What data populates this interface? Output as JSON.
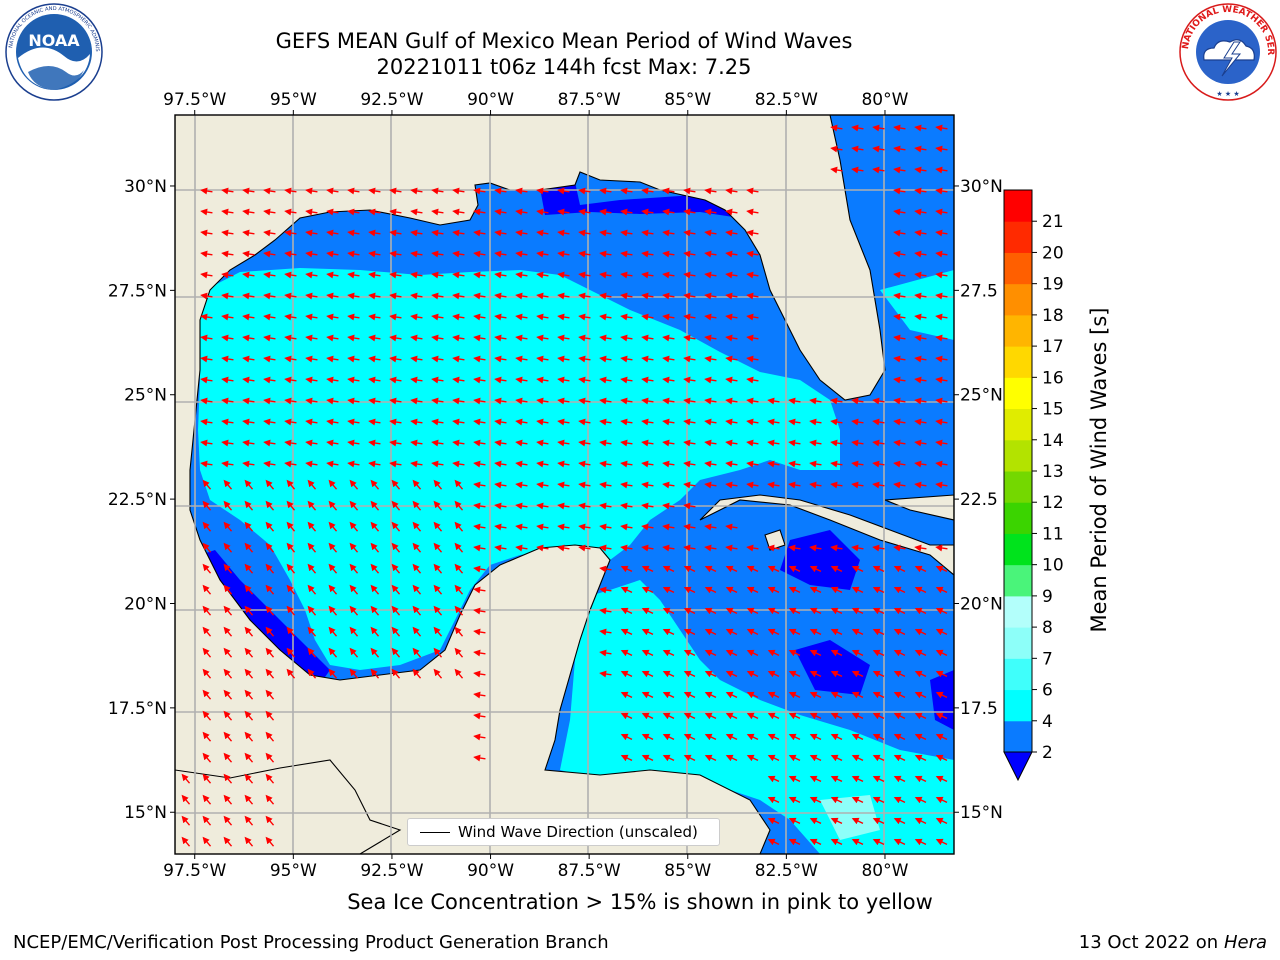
{
  "header": {
    "title_line1": "GEFS MEAN Gulf of Mexico Mean Period of Wind Waves",
    "title_line2": "20221011 t06z 144h fcst   Max: 7.25"
  },
  "logos": {
    "left": "noaa-logo",
    "right": "nws-logo",
    "left_text": "NOAA",
    "left_ring_text": "NATIONAL OCEANIC AND ATMOSPHERIC ADMINISTRATION · U.S. DEPARTMENT OF COMMERCE",
    "right_ring_text": "NATIONAL WEATHER SERVICE"
  },
  "map": {
    "lon_ticks": [
      "97.5°W",
      "95°W",
      "92.5°W",
      "90°W",
      "87.5°W",
      "85°W",
      "82.5°W",
      "80°W"
    ],
    "lat_ticks_left": [
      "30°N",
      "27.5°N",
      "25°N",
      "22.5°N",
      "20°N",
      "17.5°N",
      "15°N"
    ],
    "lat_ticks_right": [
      "30°N",
      "27.5",
      "25°N",
      "22.5",
      "20°N",
      "17.5",
      "15°N"
    ],
    "lon_values": [
      -97.5,
      -95,
      -92.5,
      -90,
      -87.5,
      -85,
      -82.5,
      -80
    ],
    "lat_values": [
      30,
      27.5,
      25,
      22.5,
      20,
      17.5,
      15
    ],
    "extent": {
      "lon_min": -98,
      "lon_max": -78.25,
      "lat_min": 14,
      "lat_max": 31.7
    },
    "land_color": "#efecdc",
    "grid_color": "#b0b0b0",
    "arrow_color": "#ff0000",
    "legend_label": "Wind Wave Direction (unscaled)"
  },
  "colorbar": {
    "label": "Mean Period of Wind Waves [s]",
    "ticks": [
      "2",
      "4",
      "6",
      "7",
      "8",
      "9",
      "10",
      "11",
      "12",
      "13",
      "14",
      "15",
      "16",
      "17",
      "18",
      "19",
      "20",
      "21"
    ],
    "colors": [
      "#0a7bff",
      "#00ffff",
      "#3ffffb",
      "#8dfff9",
      "#b3fffb",
      "#4af47a",
      "#00e31c",
      "#3bd400",
      "#74d800",
      "#b3e300",
      "#e0ec00",
      "#ffff00",
      "#ffd800",
      "#ffb500",
      "#ff8f00",
      "#ff5f00",
      "#ff2a00",
      "#ff0000"
    ],
    "under_color": "#0000ff"
  },
  "notes": {
    "ice_note": "Sea Ice Concentration > 15% is shown in pink to yellow",
    "footer_left": "NCEP/EMC/Verification Post Processing Product Generation Branch",
    "footer_date": "13 Oct 2022 on",
    "footer_machine": "Hera"
  }
}
